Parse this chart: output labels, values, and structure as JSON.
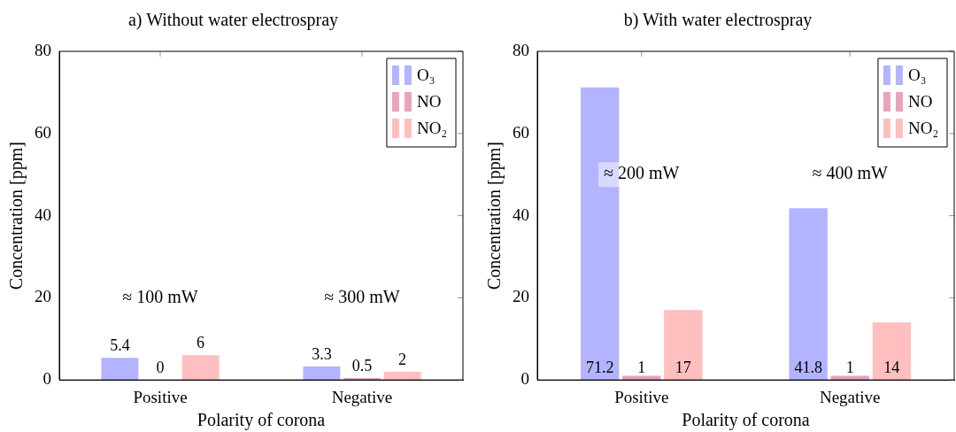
{
  "chart_data": [
    {
      "type": "bar",
      "title": "a) Without water electrospray",
      "xlabel": "Polarity of corona",
      "ylabel": "Concentration [ppm]",
      "categories": [
        "Positive",
        "Negative"
      ],
      "series": [
        {
          "name": "O₃",
          "color": "#b3b3ff",
          "values": [
            5.4,
            3.3
          ]
        },
        {
          "name": "NO",
          "color": "#e8a3bd",
          "values": [
            0,
            0.5
          ]
        },
        {
          "name": "NO₂",
          "color": "#ffbfbf",
          "values": [
            6,
            2
          ]
        }
      ],
      "ylim": [
        0,
        80
      ],
      "yticks": [
        0,
        20,
        40,
        60,
        80
      ],
      "grid": false,
      "legend": "top right",
      "data_labels": true,
      "annotations": [
        "≈ 100 mW",
        "≈ 300 mW"
      ]
    },
    {
      "type": "bar",
      "title": "b) With water electrospray",
      "xlabel": "Polarity of corona",
      "ylabel": "Concentration [ppm]",
      "categories": [
        "Positive",
        "Negative"
      ],
      "series": [
        {
          "name": "O₃",
          "color": "#b3b3ff",
          "values": [
            71.2,
            41.8
          ]
        },
        {
          "name": "NO",
          "color": "#e8a3bd",
          "values": [
            1,
            1
          ]
        },
        {
          "name": "NO₂",
          "color": "#ffbfbf",
          "values": [
            17,
            14
          ]
        }
      ],
      "ylim": [
        0,
        80
      ],
      "yticks": [
        0,
        20,
        40,
        60,
        80
      ],
      "grid": false,
      "legend": "top right",
      "data_labels": true,
      "annotations": [
        "≈ 200 mW",
        "≈ 400 mW"
      ]
    }
  ]
}
